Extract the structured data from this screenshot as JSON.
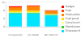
{
  "chart_data": {
    "type": "bar",
    "stacked": true,
    "categories": [
      "ICE (gasoline)",
      "ICE (diesel)",
      "BEV (electric)"
    ],
    "series": [
      {
        "name": "Disassembly",
        "color": "#00e5ff",
        "values": [
          6.5,
          6.5,
          5.5
        ]
      },
      {
        "name": "Maintenance",
        "color": "#33cc33",
        "values": [
          0.4,
          0.4,
          0.4
        ]
      },
      {
        "name": "Construction",
        "color": "#ffff99",
        "values": [
          0.3,
          0.3,
          0.3
        ]
      },
      {
        "name": "Fuel prod.",
        "color": "#ffdd00",
        "values": [
          0.5,
          0.6,
          0.0
        ]
      },
      {
        "name": "Production",
        "color": "#ff8800",
        "values": [
          1.8,
          2.2,
          1.5
        ]
      },
      {
        "name": "Fuel",
        "color": "#ff4400",
        "values": [
          0.0,
          0.0,
          0.0
        ]
      },
      {
        "name": "Usage",
        "color": "#ff0000",
        "values": [
          0.5,
          0.4,
          0.3
        ]
      }
    ],
    "ylim": [
      0,
      12
    ],
    "yticks": [
      0,
      4,
      8,
      12
    ],
    "grid": true,
    "legend": "right"
  }
}
